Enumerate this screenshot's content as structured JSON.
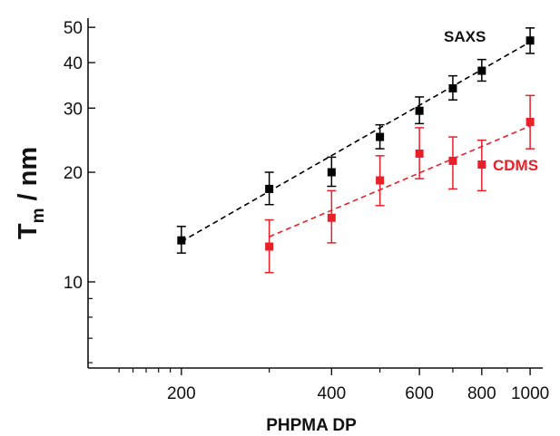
{
  "chart_data": {
    "type": "scatter",
    "xlabel": "PHPMA DP",
    "ylabel_main": "T",
    "ylabel_sub": "m",
    "ylabel_rest": " / nm",
    "xscale": "log",
    "yscale": "log",
    "xlim": [
      130,
      1060
    ],
    "ylim": [
      5.8,
      53
    ],
    "xticks": [
      200,
      400,
      600,
      800,
      1000
    ],
    "xtick_labels": [
      "200",
      "400",
      "600",
      "800",
      "1000"
    ],
    "yticks": [
      10,
      20,
      30,
      40,
      50
    ],
    "ytick_labels": [
      "10",
      "20",
      "30",
      "40",
      "50"
    ],
    "grid": false,
    "series": [
      {
        "name": "SAXS",
        "color": "#000000",
        "points": [
          {
            "x": 200,
            "y": 13.0,
            "ylo": 12.0,
            "yhi": 14.2
          },
          {
            "x": 300,
            "y": 18.0,
            "ylo": 16.3,
            "yhi": 20.0
          },
          {
            "x": 400,
            "y": 20.0,
            "ylo": 18.3,
            "yhi": 22.0
          },
          {
            "x": 500,
            "y": 25.0,
            "ylo": 23.2,
            "yhi": 27.0
          },
          {
            "x": 600,
            "y": 29.5,
            "ylo": 27.2,
            "yhi": 32.2
          },
          {
            "x": 700,
            "y": 34.0,
            "ylo": 31.6,
            "yhi": 36.8
          },
          {
            "x": 800,
            "y": 38.0,
            "ylo": 35.6,
            "yhi": 40.8
          },
          {
            "x": 1000,
            "y": 46.0,
            "ylo": 42.4,
            "yhi": 49.8
          }
        ],
        "fit": {
          "x": [
            200,
            1000
          ],
          "y": [
            12.9,
            45.6
          ]
        }
      },
      {
        "name": "CDMS",
        "color": "#e8202a",
        "points": [
          {
            "x": 300,
            "y": 12.5,
            "ylo": 10.6,
            "yhi": 14.8
          },
          {
            "x": 400,
            "y": 15.0,
            "ylo": 12.8,
            "yhi": 17.8
          },
          {
            "x": 500,
            "y": 19.0,
            "ylo": 16.2,
            "yhi": 22.2
          },
          {
            "x": 600,
            "y": 22.5,
            "ylo": 19.2,
            "yhi": 26.5
          },
          {
            "x": 700,
            "y": 21.5,
            "ylo": 18.0,
            "yhi": 25.0
          },
          {
            "x": 800,
            "y": 21.0,
            "ylo": 17.8,
            "yhi": 24.5
          },
          {
            "x": 1000,
            "y": 27.5,
            "ylo": 23.2,
            "yhi": 32.5
          }
        ],
        "fit": {
          "x": [
            300,
            1000
          ],
          "y": [
            13.3,
            26.8
          ]
        }
      }
    ]
  }
}
